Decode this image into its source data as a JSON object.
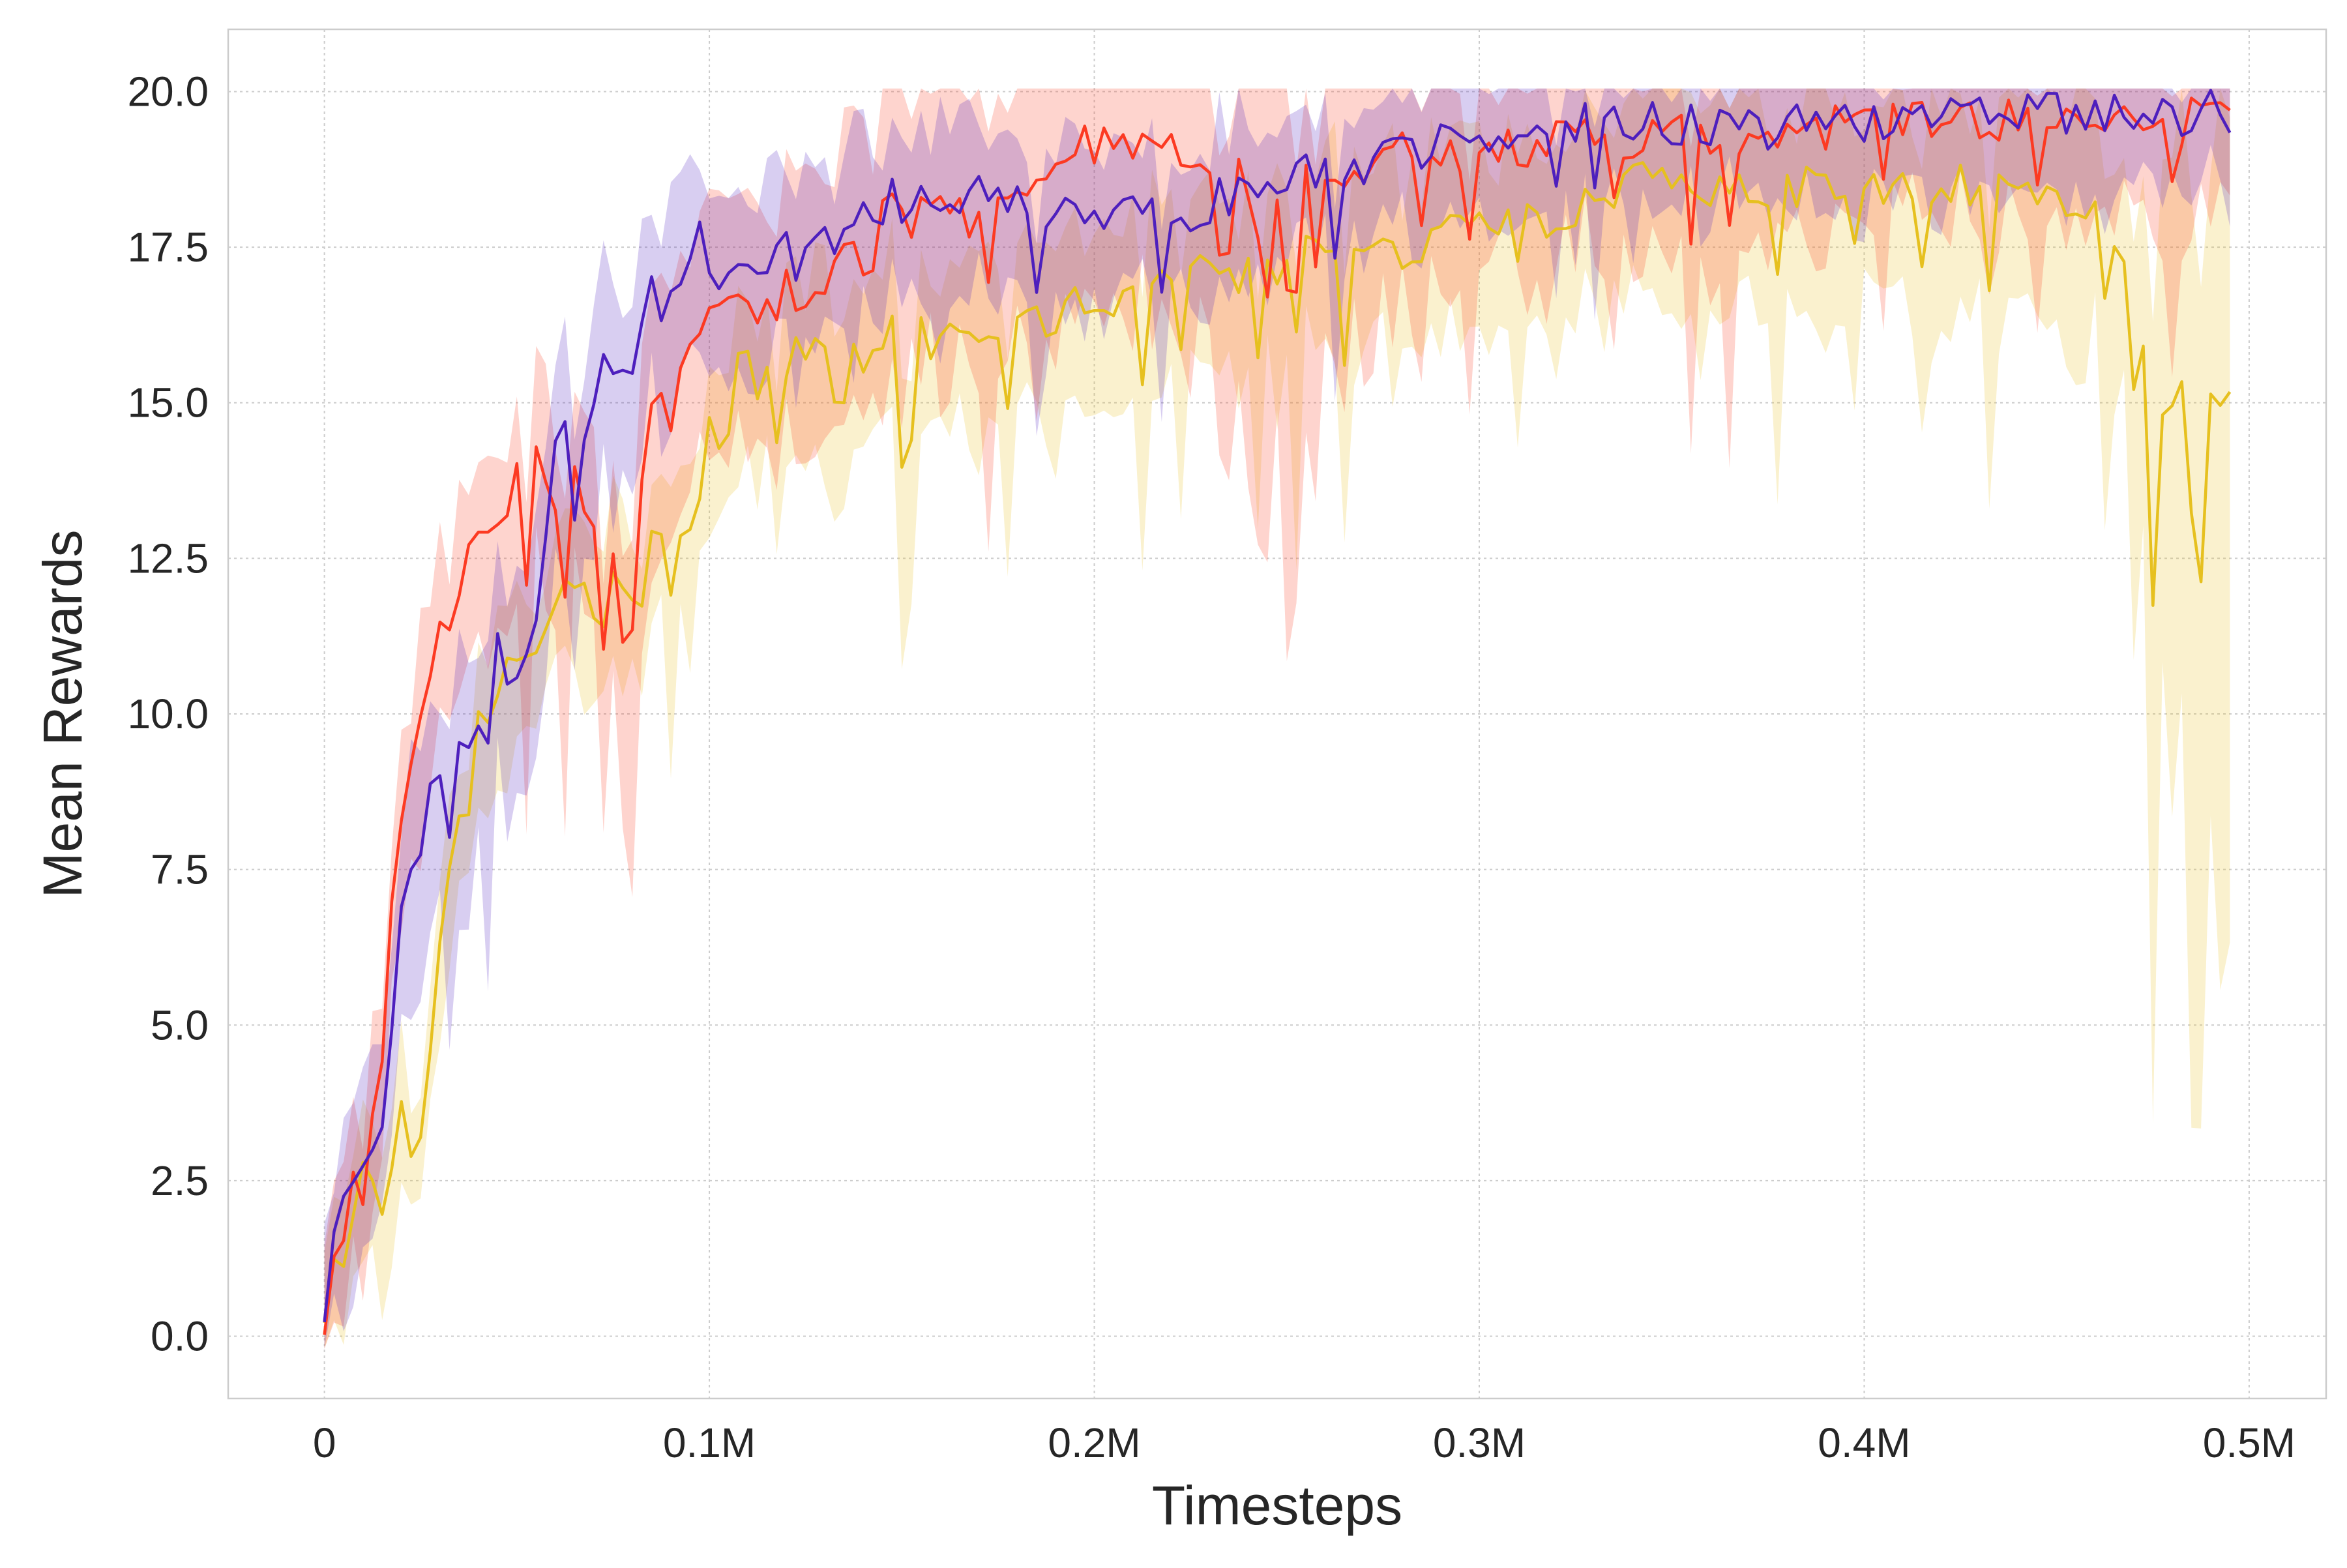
{
  "chart_data": {
    "type": "line",
    "title": "",
    "xlabel": "Timesteps",
    "ylabel": "Mean Rewards",
    "xlim": [
      -25000,
      520000
    ],
    "ylim": [
      -1.0,
      21.0
    ],
    "x_ticks": [
      0,
      100000,
      200000,
      300000,
      400000,
      500000
    ],
    "x_tick_labels": [
      "0",
      "0.1M",
      "0.2M",
      "0.3M",
      "0.4M",
      "0.5M"
    ],
    "y_ticks": [
      0,
      2.5,
      5,
      7.5,
      10,
      12.5,
      15,
      17.5,
      20
    ],
    "y_tick_labels": [
      "0.0",
      "2.5",
      "5.0",
      "7.5",
      "10.0",
      "12.5",
      "15.0",
      "17.5",
      "20.0"
    ],
    "grid": true,
    "legend": "none",
    "x_step": 2500,
    "series": [
      {
        "color": "#e6c01f",
        "anchors": [
          [
            0,
            0.5
          ],
          [
            5000,
            1.5
          ],
          [
            10000,
            3.0
          ],
          [
            15000,
            2.5
          ],
          [
            20000,
            3.5
          ],
          [
            25000,
            3.0
          ],
          [
            30000,
            6.5
          ],
          [
            35000,
            8.0
          ],
          [
            40000,
            9.5
          ],
          [
            45000,
            10.5
          ],
          [
            50000,
            10.5
          ],
          [
            55000,
            11.0
          ],
          [
            60000,
            11.5
          ],
          [
            65000,
            12.0
          ],
          [
            70000,
            11.5
          ],
          [
            75000,
            12.0
          ],
          [
            80000,
            12.0
          ],
          [
            85000,
            12.5
          ],
          [
            90000,
            13.0
          ],
          [
            95000,
            13.0
          ],
          [
            100000,
            14.5
          ],
          [
            110000,
            15.5
          ],
          [
            120000,
            15.5
          ],
          [
            130000,
            15.5
          ],
          [
            140000,
            15.5
          ],
          [
            150000,
            16.0
          ],
          [
            160000,
            16.0
          ],
          [
            170000,
            16.0
          ],
          [
            180000,
            16.0
          ],
          [
            190000,
            16.5
          ],
          [
            200000,
            16.5
          ],
          [
            220000,
            17.0
          ],
          [
            240000,
            17.0
          ],
          [
            260000,
            17.5
          ],
          [
            280000,
            17.5
          ],
          [
            300000,
            18.0
          ],
          [
            320000,
            18.0
          ],
          [
            340000,
            18.5
          ],
          [
            360000,
            18.5
          ],
          [
            380000,
            18.5
          ],
          [
            400000,
            18.5
          ],
          [
            420000,
            18.5
          ],
          [
            440000,
            18.5
          ],
          [
            460000,
            18.0
          ],
          [
            470000,
            17.5
          ],
          [
            475000,
            15.0
          ],
          [
            480000,
            15.0
          ],
          [
            490000,
            15.0
          ],
          [
            497000,
            15.5
          ]
        ],
        "dips": [
          [
            90000,
            1.5
          ],
          [
            117500,
            1.0
          ],
          [
            150000,
            1.8
          ],
          [
            152500,
            1.8
          ],
          [
            177500,
            1.2
          ],
          [
            212500,
            1.2
          ],
          [
            222500,
            1.0
          ],
          [
            242500,
            1.5
          ],
          [
            252500,
            1.5
          ],
          [
            265000,
            1.8
          ],
          [
            310000,
            1.0
          ],
          [
            377500,
            1.2
          ],
          [
            397500,
            1.3
          ],
          [
            415000,
            1.0
          ],
          [
            428000,
            1.2
          ],
          [
            432500,
            1.5
          ],
          [
            462500,
            1.0
          ],
          [
            470000,
            2.5
          ],
          [
            475000,
            3.2
          ],
          [
            485000,
            2.0
          ],
          [
            487500,
            2.5
          ]
        ],
        "spread_base": 0.8,
        "spread_extra": [
          [
            445000,
            0.6
          ],
          [
            470000,
            1.0
          ],
          [
            475000,
            3.0
          ],
          [
            485000,
            4.5
          ],
          [
            497000,
            5.0
          ]
        ],
        "seed": 17
      },
      {
        "color": "#fc3a22",
        "anchors": [
          [
            0,
            0.3
          ],
          [
            5000,
            1.8
          ],
          [
            10000,
            2.5
          ],
          [
            15000,
            4.5
          ],
          [
            20000,
            8.5
          ],
          [
            25000,
            10.0
          ],
          [
            30000,
            11.0
          ],
          [
            35000,
            12.0
          ],
          [
            40000,
            12.5
          ],
          [
            45000,
            13.0
          ],
          [
            50000,
            13.5
          ],
          [
            55000,
            14.0
          ],
          [
            60000,
            13.5
          ],
          [
            65000,
            13.5
          ],
          [
            70000,
            13.0
          ],
          [
            75000,
            13.0
          ],
          [
            80000,
            13.5
          ],
          [
            85000,
            14.5
          ],
          [
            90000,
            15.0
          ],
          [
            95000,
            15.5
          ],
          [
            100000,
            16.5
          ],
          [
            110000,
            16.5
          ],
          [
            120000,
            17.0
          ],
          [
            130000,
            17.0
          ],
          [
            140000,
            17.5
          ],
          [
            150000,
            18.0
          ],
          [
            160000,
            18.0
          ],
          [
            170000,
            18.0
          ],
          [
            180000,
            18.5
          ],
          [
            190000,
            19.0
          ],
          [
            200000,
            19.2
          ],
          [
            220000,
            19.0
          ],
          [
            240000,
            18.5
          ],
          [
            260000,
            18.5
          ],
          [
            280000,
            19.0
          ],
          [
            300000,
            19.0
          ],
          [
            320000,
            19.2
          ],
          [
            340000,
            19.3
          ],
          [
            360000,
            19.3
          ],
          [
            380000,
            19.3
          ],
          [
            400000,
            19.5
          ],
          [
            420000,
            19.5
          ],
          [
            440000,
            19.5
          ],
          [
            460000,
            19.6
          ],
          [
            480000,
            19.5
          ],
          [
            497000,
            19.6
          ]
        ],
        "dips": [
          [
            52500,
            1.5
          ],
          [
            62500,
            1.5
          ],
          [
            72500,
            1.5
          ],
          [
            77500,
            2.0
          ],
          [
            80000,
            1.8
          ],
          [
            172500,
            1.5
          ],
          [
            232500,
            1.5
          ],
          [
            235000,
            1.5
          ],
          [
            242500,
            1.2
          ],
          [
            245000,
            1.5
          ],
          [
            250000,
            2.0
          ],
          [
            252500,
            2.0
          ],
          [
            257500,
            1.3
          ],
          [
            285000,
            1.2
          ],
          [
            297500,
            1.3
          ],
          [
            335000,
            1.0
          ],
          [
            355000,
            1.5
          ],
          [
            365000,
            1.5
          ],
          [
            405000,
            1.0
          ],
          [
            445000,
            1.0
          ],
          [
            480000,
            1.0
          ]
        ],
        "spread_base": 0.9,
        "spread_extra": [
          [
            235000,
            1.5
          ],
          [
            245000,
            2.0
          ],
          [
            300000,
            0.2
          ],
          [
            350000,
            0.6
          ],
          [
            420000,
            0.2
          ]
        ],
        "seed": 29
      },
      {
        "color": "#4d1fbd",
        "anchors": [
          [
            0,
            0.5
          ],
          [
            5000,
            2.4
          ],
          [
            10000,
            2.2
          ],
          [
            15000,
            3.0
          ],
          [
            20000,
            6.5
          ],
          [
            25000,
            8.0
          ],
          [
            30000,
            9.0
          ],
          [
            35000,
            9.0
          ],
          [
            40000,
            9.5
          ],
          [
            45000,
            11.0
          ],
          [
            50000,
            11.0
          ],
          [
            55000,
            12.0
          ],
          [
            60000,
            14.0
          ],
          [
            65000,
            14.5
          ],
          [
            70000,
            15.0
          ],
          [
            75000,
            15.5
          ],
          [
            80000,
            16.0
          ],
          [
            85000,
            16.5
          ],
          [
            90000,
            17.0
          ],
          [
            95000,
            17.5
          ],
          [
            100000,
            17.3
          ],
          [
            110000,
            17.3
          ],
          [
            120000,
            17.4
          ],
          [
            130000,
            17.6
          ],
          [
            140000,
            18.0
          ],
          [
            150000,
            18.2
          ],
          [
            160000,
            18.3
          ],
          [
            170000,
            18.5
          ],
          [
            180000,
            18.3
          ],
          [
            190000,
            18.0
          ],
          [
            200000,
            18.0
          ],
          [
            220000,
            18.0
          ],
          [
            240000,
            18.5
          ],
          [
            260000,
            18.7
          ],
          [
            280000,
            19.0
          ],
          [
            300000,
            19.3
          ],
          [
            320000,
            19.4
          ],
          [
            340000,
            19.5
          ],
          [
            360000,
            19.4
          ],
          [
            380000,
            19.4
          ],
          [
            400000,
            19.5
          ],
          [
            420000,
            19.6
          ],
          [
            440000,
            19.6
          ],
          [
            460000,
            19.6
          ],
          [
            480000,
            19.6
          ],
          [
            497000,
            19.7
          ]
        ],
        "dips": [
          [
            32500,
            1.5
          ],
          [
            42500,
            1.2
          ],
          [
            65000,
            1.2
          ],
          [
            185000,
            1.5
          ],
          [
            217500,
            1.2
          ],
          [
            262500,
            1.5
          ],
          [
            320000,
            1.0
          ],
          [
            330000,
            0.8
          ]
        ],
        "spread_base": 0.8,
        "spread_extra": [
          [
            30000,
            0.8
          ],
          [
            90000,
            0.4
          ],
          [
            300000,
            -0.2
          ]
        ],
        "seed": 41
      }
    ]
  }
}
